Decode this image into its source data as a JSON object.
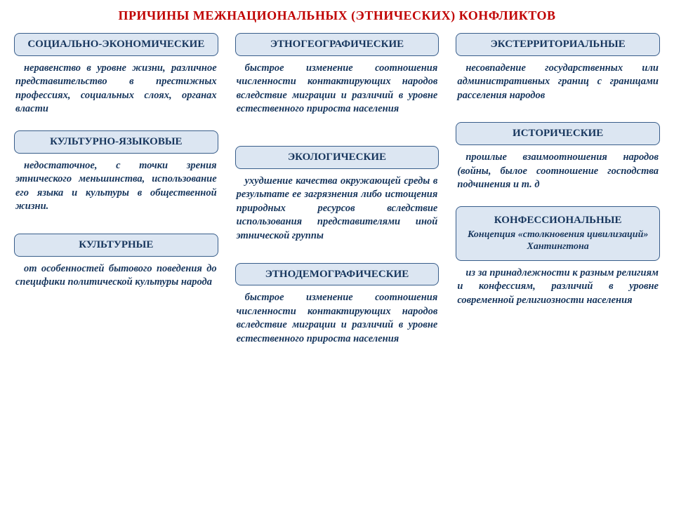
{
  "title": "ПРИЧИНЫ МЕЖНАЦИОНАЛЬНЫХ (ЭТНИЧЕСКИХ) КОНФЛИКТОВ",
  "colors": {
    "title": "#c00000",
    "box_bg": "#dce6f2",
    "box_border": "#385d8a",
    "text": "#17365d",
    "page_bg": "#ffffff"
  },
  "columns": [
    {
      "blocks": [
        {
          "header": "СОЦИАЛЬНО-ЭКОНОМИЧЕСКИЕ",
          "desc": "неравенство в уровне жизни, различное представительство в престижных профессиях, социальных слоях, органах власти"
        },
        {
          "header": "КУЛЬТУРНО-ЯЗЫКОВЫЕ",
          "desc": "недостаточное, с точки зрения этнического меньшинства, использование его языка и культуры в общественной жизни."
        },
        {
          "header": "КУЛЬТУРНЫЕ",
          "desc": "от особенностей бытового поведения до специфики политической культуры народа"
        }
      ]
    },
    {
      "blocks": [
        {
          "header": "ЭТНОГЕОГРАФИЧЕСКИЕ",
          "desc": "быстрое изменение соотношения численности контактирующих народов вследствие миграции и различий в уровне естественного прироста населения"
        },
        {
          "header": "ЭКОЛОГИЧЕСКИЕ",
          "desc": "ухудшение качества окружающей среды в результате ее загрязнения либо истощения природных ресурсов вследствие использования представителями иной этнической группы"
        },
        {
          "header": "ЭТНОДЕМОГРАФИЧЕСКИЕ",
          "desc": "быстрое изменение соотношения численности контактирующих народов вследствие миграции и различий в уровне естественного прироста населения"
        }
      ]
    },
    {
      "blocks": [
        {
          "header": "ЭКСТЕРРИТОРИАЛЬНЫЕ",
          "desc": "несовпадение государственных или административных границ с границами расселения народов"
        },
        {
          "header": "ИСТОРИЧЕСКИЕ",
          "desc": "прошлые взаимоотношения народов (войны, былое соотношение господства подчинения и т. д"
        },
        {
          "header": "КОНФЕССИОНАЛЬНЫЕ",
          "sub": "Концепция «столкновения цивилизаций» Хантингтона",
          "desc": "из за принадлежности к разным религиям и конфессиям, различий в уровне современной религиозности населения"
        }
      ]
    }
  ]
}
